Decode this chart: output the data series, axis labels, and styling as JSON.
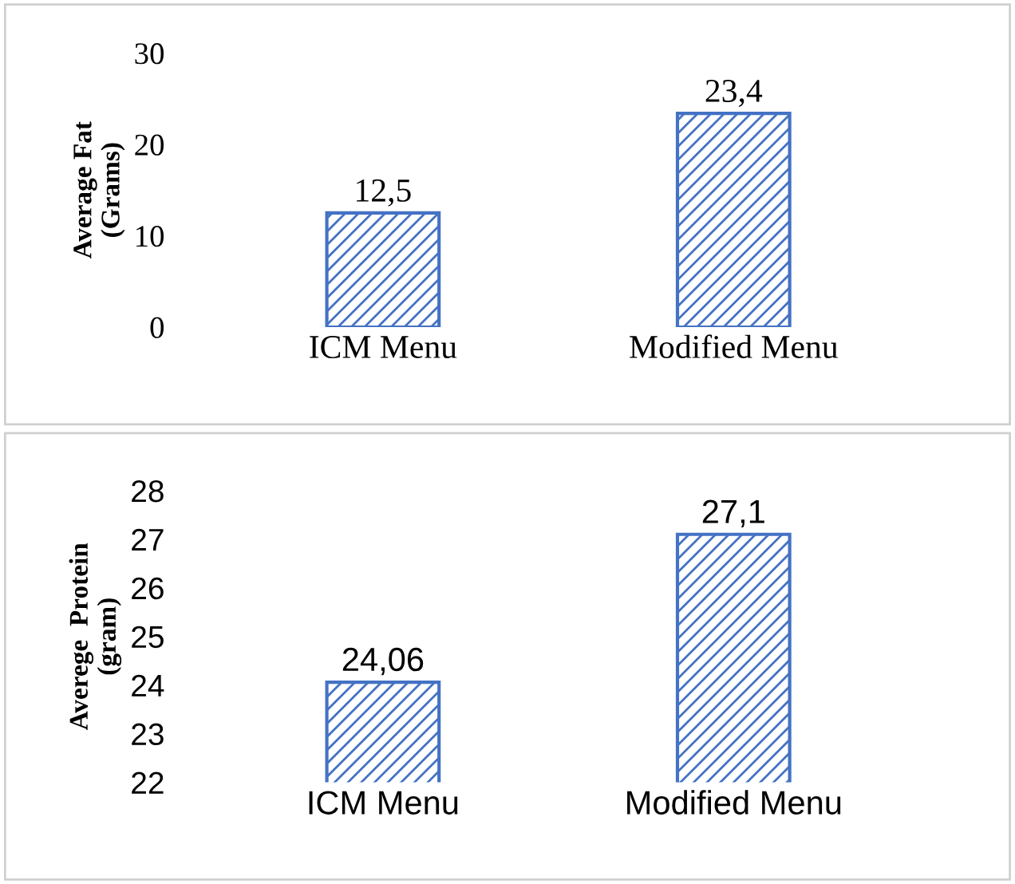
{
  "chart_data": [
    {
      "type": "bar",
      "ylabel": "Average Fat\n(Grams)",
      "categories": [
        "ICM Menu",
        "Modified Menu"
      ],
      "values": [
        12.5,
        23.4
      ],
      "value_labels": [
        "12,5",
        "23,4"
      ],
      "color": "#4472c4",
      "ylim": [
        0,
        30
      ],
      "yticks": [
        0,
        10,
        20,
        30
      ],
      "grid": false,
      "legend": false
    },
    {
      "type": "bar",
      "ylabel": "Averege  Protein\n(gram)",
      "categories": [
        "ICM Menu",
        "Modified Menu"
      ],
      "values": [
        24.06,
        27.1
      ],
      "value_labels": [
        "24,06",
        "27,1"
      ],
      "color": "#4472c4",
      "ylim": [
        22,
        28
      ],
      "yticks": [
        22,
        23,
        24,
        25,
        26,
        27,
        28
      ],
      "grid": false,
      "legend": false
    }
  ]
}
